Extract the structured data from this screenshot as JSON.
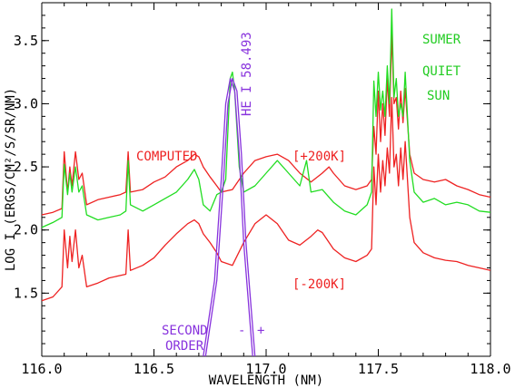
{
  "chart_data": {
    "type": "line",
    "xlabel": "WAVELENGTH (NM)",
    "ylabel": "LOG I (ERGS/CM²/S/SR/NM)",
    "xlim": [
      116.0,
      118.0
    ],
    "ylim": [
      1.0,
      3.8
    ],
    "xticks": [
      116.0,
      116.5,
      117.0,
      117.5,
      118.0
    ],
    "xtick_labels": [
      "116.0",
      "116.5",
      "117.0",
      "117.5",
      "118.0"
    ],
    "yticks": [
      1.5,
      2.0,
      2.5,
      3.0,
      3.5
    ],
    "ytick_labels": [
      "1.5",
      "2.0",
      "2.5",
      "3.0",
      "3.5"
    ],
    "colors": {
      "computed": "#ee2222",
      "sumer": "#22dd22",
      "second_order": "#8833dd",
      "axes": "#000000"
    },
    "series": [
      {
        "name": "COMPUTED [+200K]",
        "color": "#ee2222",
        "points": [
          [
            116.0,
            2.12
          ],
          [
            116.05,
            2.14
          ],
          [
            116.09,
            2.17
          ],
          [
            116.1,
            2.62
          ],
          [
            116.115,
            2.3
          ],
          [
            116.125,
            2.5
          ],
          [
            116.135,
            2.35
          ],
          [
            116.15,
            2.62
          ],
          [
            116.165,
            2.4
          ],
          [
            116.18,
            2.45
          ],
          [
            116.2,
            2.2
          ],
          [
            116.25,
            2.24
          ],
          [
            116.3,
            2.26
          ],
          [
            116.35,
            2.28
          ],
          [
            116.375,
            2.3
          ],
          [
            116.385,
            2.62
          ],
          [
            116.395,
            2.3
          ],
          [
            116.45,
            2.32
          ],
          [
            116.5,
            2.38
          ],
          [
            116.55,
            2.42
          ],
          [
            116.6,
            2.5
          ],
          [
            116.65,
            2.55
          ],
          [
            116.68,
            2.6
          ],
          [
            116.7,
            2.58
          ],
          [
            116.72,
            2.5
          ],
          [
            116.75,
            2.42
          ],
          [
            116.78,
            2.35
          ],
          [
            116.8,
            2.3
          ],
          [
            116.85,
            2.32
          ],
          [
            116.9,
            2.45
          ],
          [
            116.95,
            2.55
          ],
          [
            117.0,
            2.58
          ],
          [
            117.05,
            2.6
          ],
          [
            117.1,
            2.55
          ],
          [
            117.15,
            2.45
          ],
          [
            117.2,
            2.38
          ],
          [
            117.25,
            2.45
          ],
          [
            117.28,
            2.5
          ],
          [
            117.3,
            2.45
          ],
          [
            117.35,
            2.35
          ],
          [
            117.4,
            2.32
          ],
          [
            117.45,
            2.35
          ],
          [
            117.47,
            2.4
          ],
          [
            117.48,
            2.82
          ],
          [
            117.49,
            2.6
          ],
          [
            117.5,
            3.1
          ],
          [
            117.51,
            2.7
          ],
          [
            117.52,
            3.0
          ],
          [
            117.53,
            2.75
          ],
          [
            117.54,
            3.2
          ],
          [
            117.55,
            2.9
          ],
          [
            117.56,
            3.55
          ],
          [
            117.57,
            3.0
          ],
          [
            117.58,
            3.05
          ],
          [
            117.59,
            2.8
          ],
          [
            117.6,
            3.1
          ],
          [
            117.61,
            2.85
          ],
          [
            117.62,
            3.12
          ],
          [
            117.64,
            2.6
          ],
          [
            117.66,
            2.45
          ],
          [
            117.7,
            2.4
          ],
          [
            117.75,
            2.38
          ],
          [
            117.8,
            2.4
          ],
          [
            117.85,
            2.35
          ],
          [
            117.9,
            2.32
          ],
          [
            117.95,
            2.28
          ],
          [
            118.0,
            2.26
          ]
        ]
      },
      {
        "name": "COMPUTED [-200K]",
        "color": "#ee2222",
        "points": [
          [
            116.0,
            1.44
          ],
          [
            116.05,
            1.47
          ],
          [
            116.09,
            1.55
          ],
          [
            116.1,
            2.0
          ],
          [
            116.115,
            1.7
          ],
          [
            116.125,
            1.95
          ],
          [
            116.135,
            1.75
          ],
          [
            116.15,
            2.0
          ],
          [
            116.165,
            1.7
          ],
          [
            116.18,
            1.8
          ],
          [
            116.2,
            1.55
          ],
          [
            116.25,
            1.58
          ],
          [
            116.3,
            1.62
          ],
          [
            116.35,
            1.64
          ],
          [
            116.375,
            1.65
          ],
          [
            116.385,
            2.0
          ],
          [
            116.395,
            1.68
          ],
          [
            116.45,
            1.72
          ],
          [
            116.5,
            1.78
          ],
          [
            116.55,
            1.88
          ],
          [
            116.6,
            1.97
          ],
          [
            116.65,
            2.05
          ],
          [
            116.68,
            2.08
          ],
          [
            116.7,
            2.05
          ],
          [
            116.72,
            1.97
          ],
          [
            116.75,
            1.9
          ],
          [
            116.78,
            1.82
          ],
          [
            116.8,
            1.75
          ],
          [
            116.85,
            1.72
          ],
          [
            116.9,
            1.9
          ],
          [
            116.95,
            2.05
          ],
          [
            117.0,
            2.12
          ],
          [
            117.05,
            2.05
          ],
          [
            117.1,
            1.92
          ],
          [
            117.15,
            1.88
          ],
          [
            117.2,
            1.95
          ],
          [
            117.23,
            2.0
          ],
          [
            117.25,
            1.98
          ],
          [
            117.3,
            1.85
          ],
          [
            117.35,
            1.78
          ],
          [
            117.4,
            1.75
          ],
          [
            117.45,
            1.8
          ],
          [
            117.47,
            1.85
          ],
          [
            117.48,
            2.5
          ],
          [
            117.49,
            2.2
          ],
          [
            117.5,
            2.6
          ],
          [
            117.51,
            2.3
          ],
          [
            117.52,
            2.55
          ],
          [
            117.53,
            2.35
          ],
          [
            117.54,
            2.65
          ],
          [
            117.55,
            2.45
          ],
          [
            117.56,
            3.05
          ],
          [
            117.57,
            2.5
          ],
          [
            117.58,
            2.6
          ],
          [
            117.59,
            2.35
          ],
          [
            117.6,
            2.65
          ],
          [
            117.61,
            2.4
          ],
          [
            117.62,
            2.7
          ],
          [
            117.64,
            2.1
          ],
          [
            117.66,
            1.9
          ],
          [
            117.7,
            1.82
          ],
          [
            117.75,
            1.78
          ],
          [
            117.8,
            1.76
          ],
          [
            117.85,
            1.75
          ],
          [
            117.9,
            1.72
          ],
          [
            117.95,
            1.7
          ],
          [
            118.0,
            1.68
          ]
        ]
      },
      {
        "name": "SUMER QUIET SUN",
        "color": "#22dd22",
        "points": [
          [
            116.0,
            2.02
          ],
          [
            116.05,
            2.06
          ],
          [
            116.09,
            2.1
          ],
          [
            116.1,
            2.52
          ],
          [
            116.115,
            2.28
          ],
          [
            116.125,
            2.45
          ],
          [
            116.135,
            2.3
          ],
          [
            116.15,
            2.5
          ],
          [
            116.165,
            2.3
          ],
          [
            116.18,
            2.35
          ],
          [
            116.2,
            2.12
          ],
          [
            116.25,
            2.08
          ],
          [
            116.3,
            2.1
          ],
          [
            116.35,
            2.12
          ],
          [
            116.375,
            2.15
          ],
          [
            116.385,
            2.55
          ],
          [
            116.395,
            2.2
          ],
          [
            116.45,
            2.15
          ],
          [
            116.5,
            2.2
          ],
          [
            116.55,
            2.25
          ],
          [
            116.6,
            2.3
          ],
          [
            116.65,
            2.4
          ],
          [
            116.68,
            2.48
          ],
          [
            116.7,
            2.4
          ],
          [
            116.72,
            2.2
          ],
          [
            116.75,
            2.15
          ],
          [
            116.78,
            2.28
          ],
          [
            116.8,
            2.3
          ],
          [
            116.82,
            2.4
          ],
          [
            116.84,
            3.2
          ],
          [
            116.85,
            3.25
          ],
          [
            116.86,
            3.1
          ],
          [
            116.88,
            2.5
          ],
          [
            116.9,
            2.3
          ],
          [
            116.95,
            2.35
          ],
          [
            117.0,
            2.45
          ],
          [
            117.05,
            2.55
          ],
          [
            117.1,
            2.45
          ],
          [
            117.15,
            2.35
          ],
          [
            117.18,
            2.55
          ],
          [
            117.2,
            2.3
          ],
          [
            117.25,
            2.32
          ],
          [
            117.3,
            2.22
          ],
          [
            117.35,
            2.15
          ],
          [
            117.4,
            2.12
          ],
          [
            117.45,
            2.2
          ],
          [
            117.47,
            2.3
          ],
          [
            117.48,
            3.18
          ],
          [
            117.49,
            2.9
          ],
          [
            117.5,
            3.25
          ],
          [
            117.51,
            2.95
          ],
          [
            117.52,
            3.1
          ],
          [
            117.53,
            2.9
          ],
          [
            117.54,
            3.3
          ],
          [
            117.55,
            3.0
          ],
          [
            117.56,
            3.75
          ],
          [
            117.57,
            3.05
          ],
          [
            117.58,
            3.2
          ],
          [
            117.59,
            2.9
          ],
          [
            117.6,
            3.0
          ],
          [
            117.61,
            2.9
          ],
          [
            117.62,
            3.25
          ],
          [
            117.64,
            2.55
          ],
          [
            117.66,
            2.3
          ],
          [
            117.7,
            2.22
          ],
          [
            117.75,
            2.25
          ],
          [
            117.8,
            2.2
          ],
          [
            117.85,
            2.22
          ],
          [
            117.9,
            2.2
          ],
          [
            117.95,
            2.15
          ],
          [
            118.0,
            2.14
          ]
        ]
      },
      {
        "name": "HE I 58.493 SECOND ORDER (-)",
        "color": "#8833dd",
        "points": [
          [
            116.72,
            1.0
          ],
          [
            116.77,
            1.6
          ],
          [
            116.8,
            2.4
          ],
          [
            116.82,
            3.0
          ],
          [
            116.84,
            3.2
          ],
          [
            116.86,
            3.1
          ],
          [
            116.88,
            2.6
          ],
          [
            116.9,
            1.9
          ],
          [
            116.94,
            1.0
          ]
        ]
      },
      {
        "name": "HE I 58.493 SECOND ORDER (+)",
        "color": "#8833dd",
        "points": [
          [
            116.73,
            1.0
          ],
          [
            116.78,
            1.6
          ],
          [
            116.81,
            2.4
          ],
          [
            116.83,
            3.0
          ],
          [
            116.85,
            3.2
          ],
          [
            116.87,
            3.1
          ],
          [
            116.89,
            2.6
          ],
          [
            116.91,
            1.9
          ],
          [
            116.95,
            1.0
          ]
        ]
      }
    ],
    "annotations": {
      "computed": "COMPUTED",
      "plus_200k": "[+200K]",
      "minus_200k": "[-200K]",
      "sumer_1": "SUMER",
      "sumer_2": "QUIET",
      "sumer_3": "SUN",
      "he_line": "HE I  58.493",
      "second": "SECOND",
      "order": "ORDER",
      "minus_sign": "-",
      "plus_sign": "+"
    }
  }
}
